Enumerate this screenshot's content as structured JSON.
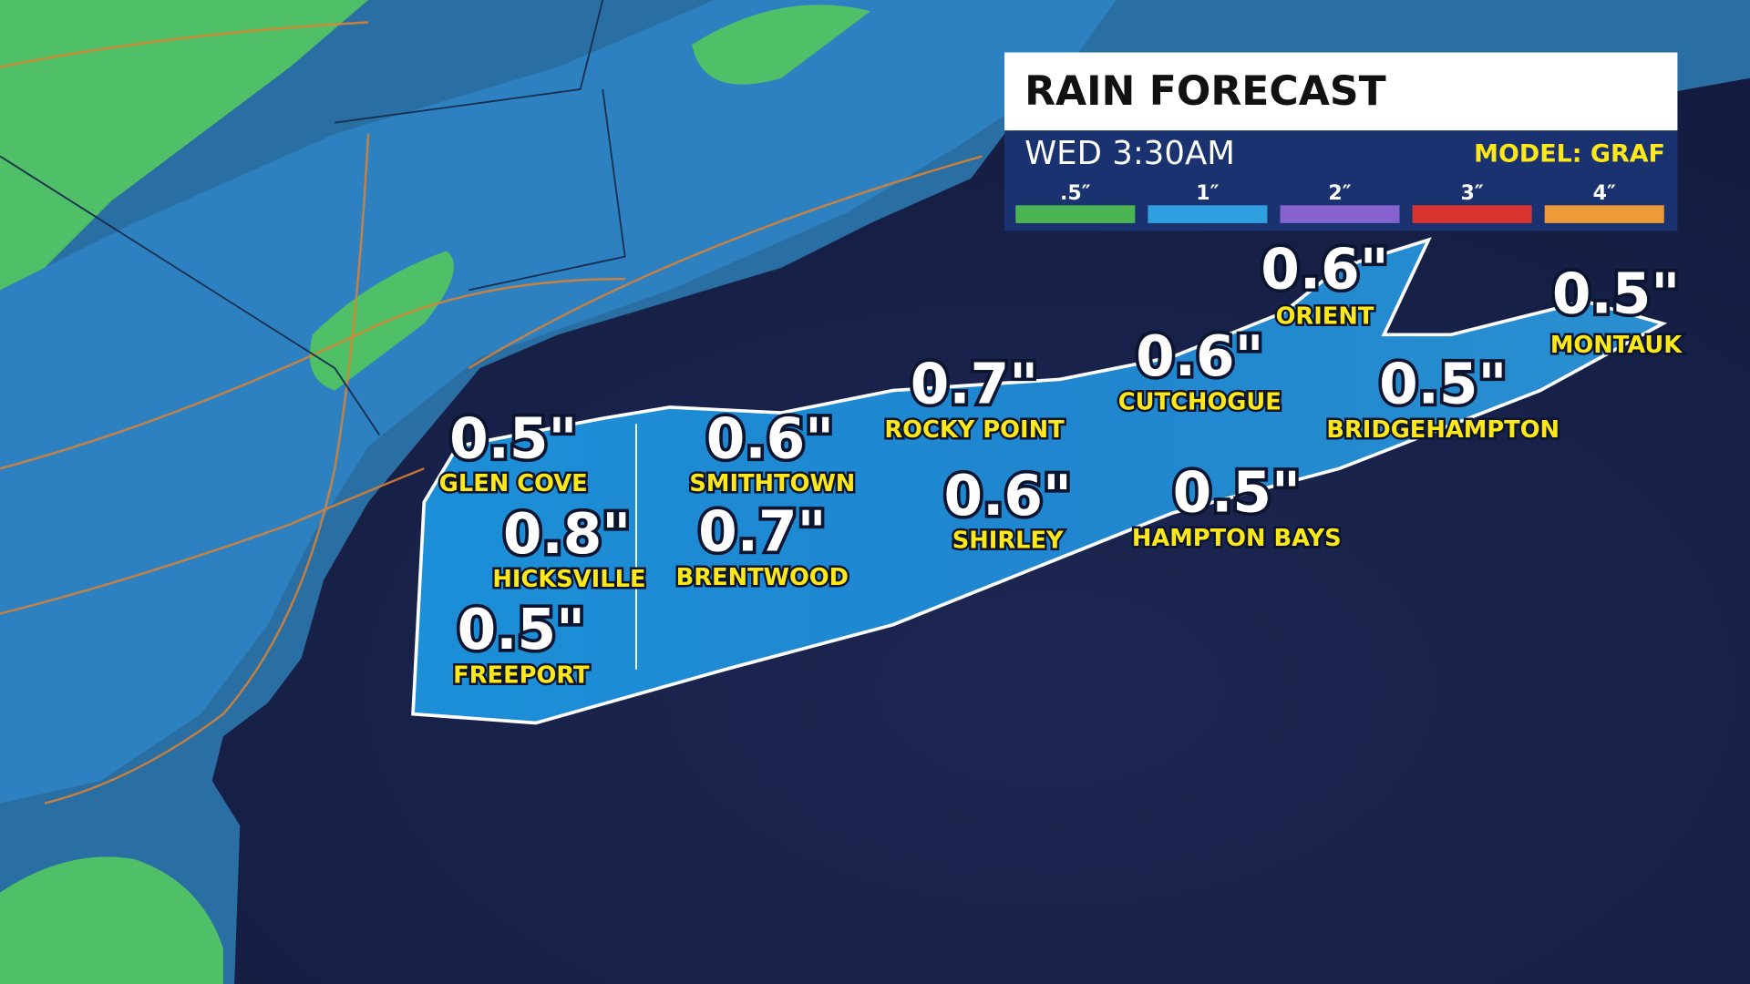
{
  "header": {
    "title": "RAIN FORECAST",
    "time": "WED 3:30AM",
    "model": "MODEL: GRAF"
  },
  "legend": [
    {
      "label": ".5″",
      "color": "#4bb552"
    },
    {
      "label": "1″",
      "color": "#2f9fe0"
    },
    {
      "label": "2″",
      "color": "#8463cf"
    },
    {
      "label": "3″",
      "color": "#d9342f"
    },
    {
      "label": "4″",
      "color": "#ee9a38"
    }
  ],
  "locations": [
    {
      "amount": "0.5\"",
      "name": "GLEN COVE"
    },
    {
      "amount": "0.6\"",
      "name": "SMITHTOWN"
    },
    {
      "amount": "0.8\"",
      "name": "HICKSVILLE"
    },
    {
      "amount": "0.7\"",
      "name": "BRENTWOOD"
    },
    {
      "amount": "0.5\"",
      "name": "FREEPORT"
    },
    {
      "amount": "0.7\"",
      "name": "ROCKY POINT"
    },
    {
      "amount": "0.6\"",
      "name": "SHIRLEY"
    },
    {
      "amount": "0.6\"",
      "name": "CUTCHOGUE"
    },
    {
      "amount": "0.5\"",
      "name": "HAMPTON BAYS"
    },
    {
      "amount": "0.6\"",
      "name": "ORIENT"
    },
    {
      "amount": "0.5\"",
      "name": "BRIDGEHAMPTON"
    },
    {
      "amount": "0.5\"",
      "name": "MONTAUK"
    }
  ]
}
